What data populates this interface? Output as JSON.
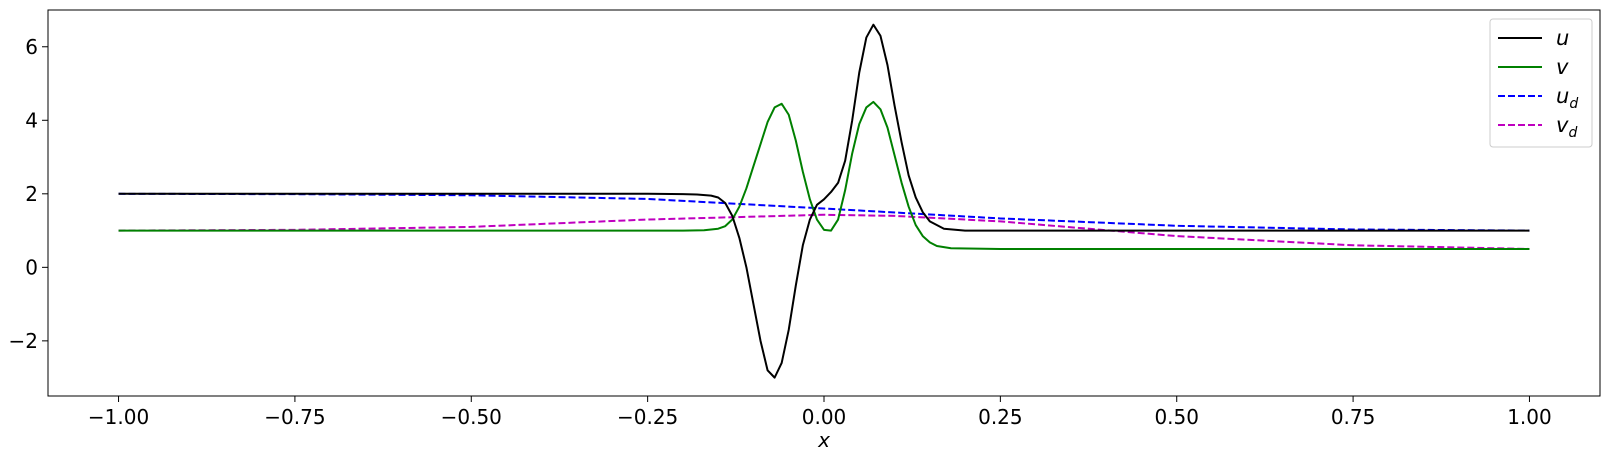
{
  "chart_data": {
    "type": "line",
    "xlabel": "x",
    "ylabel": "",
    "title": "",
    "xlim": [
      -1.1,
      1.1
    ],
    "ylim": [
      -3.5,
      7.0
    ],
    "grid": false,
    "legend_placement": "top-right",
    "x_ticks": [
      -1.0,
      -0.75,
      -0.5,
      -0.25,
      0.0,
      0.25,
      0.5,
      0.75,
      1.0
    ],
    "x_tick_labels": [
      "−1.00",
      "−0.75",
      "−0.50",
      "−0.25",
      "0.00",
      "0.25",
      "0.50",
      "0.75",
      "1.00"
    ],
    "y_ticks": [
      -2,
      0,
      2,
      4,
      6
    ],
    "y_tick_labels": [
      "−2",
      "0",
      "2",
      "4",
      "6"
    ],
    "series": [
      {
        "name": "u",
        "name_sub": "",
        "color": "#000000",
        "dash": "solid",
        "x": [
          -1.0,
          -0.5,
          -0.25,
          -0.2,
          -0.18,
          -0.16,
          -0.15,
          -0.14,
          -0.13,
          -0.12,
          -0.11,
          -0.1,
          -0.09,
          -0.08,
          -0.07,
          -0.06,
          -0.05,
          -0.04,
          -0.03,
          -0.02,
          -0.01,
          0.0,
          0.01,
          0.02,
          0.03,
          0.04,
          0.05,
          0.06,
          0.07,
          0.08,
          0.09,
          0.1,
          0.11,
          0.12,
          0.13,
          0.14,
          0.15,
          0.17,
          0.2,
          0.3,
          1.0
        ],
        "y": [
          2.0,
          2.0,
          2.0,
          1.99,
          1.98,
          1.95,
          1.9,
          1.75,
          1.4,
          0.8,
          0.0,
          -1.0,
          -2.0,
          -2.8,
          -3.0,
          -2.6,
          -1.7,
          -0.5,
          0.6,
          1.3,
          1.7,
          1.85,
          2.05,
          2.3,
          2.9,
          4.0,
          5.3,
          6.25,
          6.6,
          6.3,
          5.5,
          4.4,
          3.4,
          2.5,
          1.9,
          1.5,
          1.25,
          1.05,
          1.0,
          1.0,
          1.0
        ]
      },
      {
        "name": "v",
        "name_sub": "",
        "color": "#008000",
        "dash": "solid",
        "x": [
          -1.0,
          -0.5,
          -0.2,
          -0.17,
          -0.15,
          -0.14,
          -0.13,
          -0.12,
          -0.11,
          -0.1,
          -0.09,
          -0.08,
          -0.07,
          -0.06,
          -0.05,
          -0.04,
          -0.03,
          -0.02,
          -0.01,
          0.0,
          0.01,
          0.02,
          0.03,
          0.04,
          0.05,
          0.06,
          0.07,
          0.08,
          0.09,
          0.1,
          0.11,
          0.12,
          0.13,
          0.14,
          0.15,
          0.16,
          0.18,
          0.25,
          1.0
        ],
        "y": [
          1.0,
          1.0,
          1.0,
          1.01,
          1.05,
          1.12,
          1.3,
          1.65,
          2.15,
          2.75,
          3.35,
          3.95,
          4.35,
          4.45,
          4.15,
          3.45,
          2.6,
          1.85,
          1.3,
          1.02,
          1.0,
          1.3,
          2.1,
          3.1,
          3.9,
          4.35,
          4.5,
          4.3,
          3.8,
          3.05,
          2.3,
          1.65,
          1.15,
          0.85,
          0.68,
          0.58,
          0.52,
          0.5,
          0.5
        ]
      },
      {
        "name": "u",
        "name_sub": "d",
        "color": "#0000ff",
        "dash": "dashed",
        "x": [
          -1.0,
          -0.75,
          -0.5,
          -0.25,
          0.0,
          0.25,
          0.5,
          0.75,
          1.0
        ],
        "y": [
          2.0,
          1.99,
          1.96,
          1.86,
          1.6,
          1.33,
          1.13,
          1.03,
          1.0
        ]
      },
      {
        "name": "v",
        "name_sub": "d",
        "color": "#bf00bf",
        "dash": "dashed",
        "x": [
          -1.0,
          -0.75,
          -0.5,
          -0.25,
          0.0,
          0.1,
          0.25,
          0.5,
          0.75,
          1.0
        ],
        "y": [
          1.0,
          1.02,
          1.1,
          1.3,
          1.43,
          1.4,
          1.25,
          0.85,
          0.6,
          0.5
        ]
      }
    ]
  }
}
